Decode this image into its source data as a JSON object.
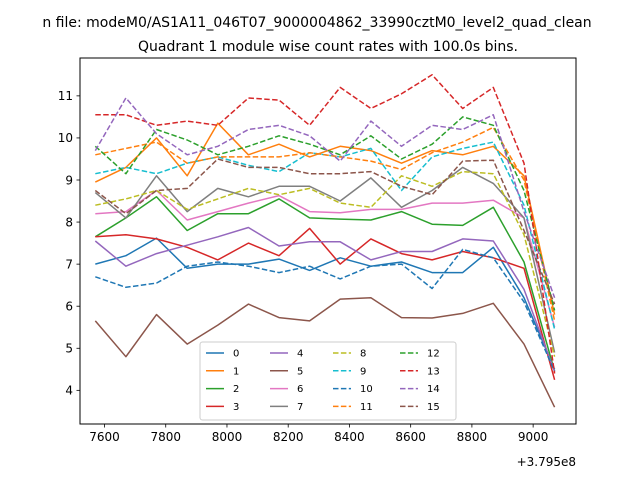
{
  "figure": {
    "suptitle": "n file: modeM0/AS1A11_046T07_9000004862_33990cztM0_level2_quad_clean"
  },
  "chart_data": {
    "type": "line",
    "title": "Quadrant 1 module wise count rates with 100.0s bins.",
    "xlabel": "",
    "ylabel": "",
    "x_offset_label": "+3.795e8",
    "xlim": [
      7520,
      9140
    ],
    "ylim": [
      3.2,
      11.9
    ],
    "x_ticks": [
      7600,
      7800,
      8000,
      8200,
      8400,
      8600,
      8800,
      9000
    ],
    "x_tick_labels": [
      "7600",
      "7800",
      "8000",
      "8200",
      "8400",
      "8600",
      "8800",
      "9000"
    ],
    "y_ticks": [
      4,
      5,
      6,
      7,
      8,
      9,
      10,
      11
    ],
    "y_tick_labels": [
      "4",
      "5",
      "6",
      "7",
      "8",
      "9",
      "10",
      "11"
    ],
    "grid": false,
    "legend_position": "lower-center",
    "legend_columns": 4,
    "x": [
      7570,
      7670,
      7770,
      7870,
      7970,
      8070,
      8170,
      8270,
      8370,
      8470,
      8570,
      8670,
      8770,
      8870,
      8970,
      9070
    ],
    "series": [
      {
        "name": "0",
        "color": "#1f77b4",
        "dashed": false,
        "values": [
          7.0,
          7.2,
          7.62,
          6.9,
          7.0,
          7.0,
          7.12,
          6.85,
          7.15,
          6.95,
          7.05,
          6.8,
          6.8,
          7.4,
          6.2,
          4.5
        ]
      },
      {
        "name": "1",
        "color": "#ff7f0e",
        "dashed": false,
        "values": [
          8.95,
          9.3,
          10.0,
          9.1,
          10.35,
          9.6,
          9.85,
          9.55,
          9.8,
          9.7,
          9.4,
          9.7,
          9.6,
          9.8,
          9.1,
          5.8
        ]
      },
      {
        "name": "2",
        "color": "#2ca02c",
        "dashed": false,
        "values": [
          7.65,
          8.1,
          8.6,
          7.8,
          8.2,
          8.2,
          8.55,
          8.1,
          8.07,
          8.05,
          8.25,
          7.95,
          7.92,
          8.35,
          7.05,
          4.45
        ]
      },
      {
        "name": "3",
        "color": "#d62728",
        "dashed": false,
        "values": [
          7.65,
          7.7,
          7.6,
          7.4,
          7.1,
          7.5,
          7.2,
          7.85,
          7.0,
          7.6,
          7.25,
          7.1,
          7.3,
          7.15,
          6.9,
          4.25
        ]
      },
      {
        "name": "4",
        "color": "#9467bd",
        "dashed": false,
        "values": [
          7.55,
          6.95,
          7.25,
          7.45,
          7.65,
          7.87,
          7.43,
          7.53,
          7.53,
          7.1,
          7.3,
          7.3,
          7.6,
          7.55,
          6.4,
          4.45
        ]
      },
      {
        "name": "5",
        "color": "#8c564b",
        "dashed": false,
        "values": [
          5.65,
          4.8,
          5.8,
          5.1,
          5.55,
          6.05,
          5.73,
          5.65,
          6.17,
          6.2,
          5.73,
          5.72,
          5.83,
          6.07,
          5.1,
          3.6
        ]
      },
      {
        "name": "6",
        "color": "#e377c2",
        "dashed": false,
        "values": [
          8.2,
          8.25,
          8.75,
          8.05,
          8.25,
          8.45,
          8.63,
          8.25,
          8.22,
          8.3,
          8.3,
          8.45,
          8.45,
          8.52,
          8.1,
          5.5
        ]
      },
      {
        "name": "7",
        "color": "#7f7f7f",
        "dashed": false,
        "values": [
          8.7,
          8.1,
          9.1,
          8.25,
          8.8,
          8.6,
          8.85,
          8.85,
          8.5,
          9.05,
          8.35,
          8.75,
          9.3,
          8.92,
          8.1,
          4.9
        ]
      },
      {
        "name": "8",
        "color": "#bcbd22",
        "dashed": true,
        "values": [
          8.4,
          8.55,
          8.75,
          8.3,
          8.55,
          8.8,
          8.65,
          8.8,
          8.45,
          8.35,
          9.1,
          8.85,
          9.2,
          9.15,
          7.7,
          4.8
        ]
      },
      {
        "name": "9",
        "color": "#17becf",
        "dashed": true,
        "values": [
          9.15,
          9.3,
          9.15,
          9.4,
          9.55,
          9.35,
          9.2,
          9.65,
          9.55,
          9.75,
          8.75,
          9.55,
          9.75,
          9.9,
          8.4,
          5.45
        ]
      },
      {
        "name": "10",
        "color": "#1f77b4",
        "dashed": true,
        "values": [
          6.7,
          6.45,
          6.55,
          6.95,
          7.05,
          6.95,
          6.8,
          6.95,
          6.65,
          6.95,
          7.0,
          6.42,
          7.35,
          7.15,
          6.1,
          4.45
        ]
      },
      {
        "name": "11",
        "color": "#ff7f0e",
        "dashed": true,
        "values": [
          9.6,
          9.75,
          9.9,
          9.4,
          9.55,
          9.55,
          9.55,
          9.65,
          9.55,
          9.45,
          9.25,
          9.65,
          9.9,
          10.25,
          9.0,
          5.65
        ]
      },
      {
        "name": "12",
        "color": "#2ca02c",
        "dashed": true,
        "values": [
          9.8,
          9.15,
          10.2,
          9.95,
          9.6,
          9.8,
          10.05,
          9.85,
          9.6,
          10.05,
          9.5,
          9.85,
          10.5,
          10.3,
          8.75,
          5.9
        ]
      },
      {
        "name": "13",
        "color": "#d62728",
        "dashed": true,
        "values": [
          10.55,
          10.55,
          10.3,
          10.4,
          10.3,
          10.95,
          10.9,
          10.3,
          11.2,
          10.7,
          11.05,
          11.5,
          10.7,
          11.2,
          9.4,
          4.4
        ]
      },
      {
        "name": "14",
        "color": "#9467bd",
        "dashed": true,
        "values": [
          9.7,
          10.95,
          10.1,
          9.6,
          9.8,
          10.2,
          10.3,
          10.05,
          9.45,
          10.4,
          9.8,
          10.3,
          10.2,
          10.55,
          8.25,
          6.2
        ]
      },
      {
        "name": "15",
        "color": "#8c564b",
        "dashed": true,
        "values": [
          8.75,
          8.2,
          8.75,
          8.8,
          9.5,
          9.3,
          9.3,
          9.15,
          9.15,
          9.2,
          8.85,
          8.65,
          9.45,
          9.47,
          7.8,
          6.05
        ]
      }
    ]
  }
}
